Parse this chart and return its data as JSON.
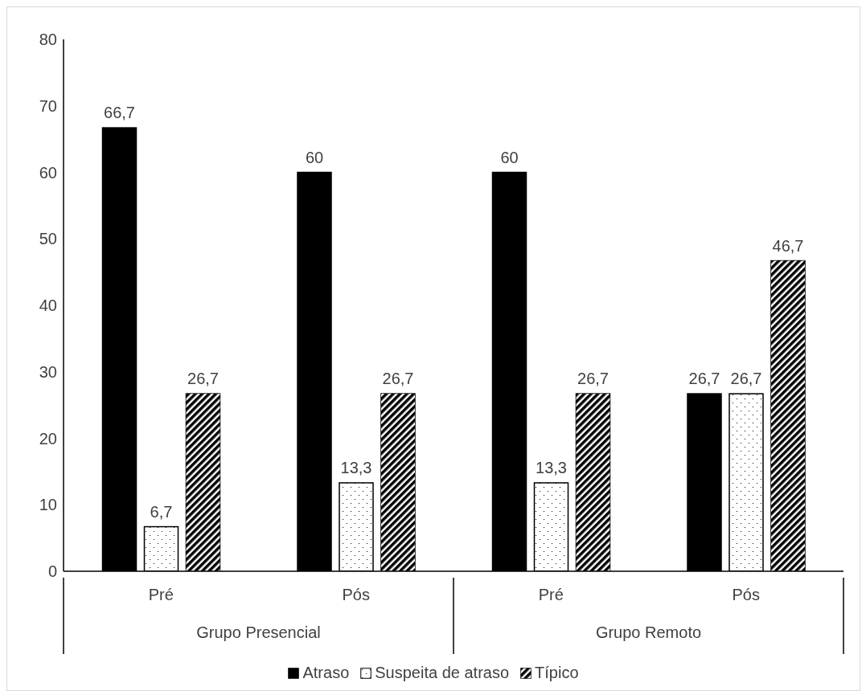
{
  "chart_data": {
    "type": "bar",
    "categories": [
      "Pré",
      "Pós",
      "Pré",
      "Pós"
    ],
    "series": [
      {
        "name": "Atraso",
        "color": "#000000",
        "values": [
          66.7,
          60,
          60,
          26.7
        ],
        "value_labels": [
          "66,7",
          "60",
          "60",
          "26,7"
        ]
      },
      {
        "name": "Suspeita de atraso",
        "color": "#ffffff",
        "values": [
          6.7,
          13.3,
          13.3,
          26.7
        ],
        "value_labels": [
          "6,7",
          "13,3",
          "13,3",
          "26,7"
        ]
      },
      {
        "name": "Típico",
        "color": "#000000",
        "values": [
          26.7,
          26.7,
          26.7,
          46.7
        ],
        "value_labels": [
          "26,7",
          "26,7",
          "26,7",
          "46,7"
        ]
      }
    ],
    "annotations": [
      "Grupo Presencial",
      "Grupo Remoto"
    ],
    "ylim": [
      0,
      80
    ],
    "yticks": [
      0,
      10,
      20,
      30,
      40,
      50,
      60,
      70,
      80
    ],
    "grid": false,
    "legend": "bottom"
  }
}
